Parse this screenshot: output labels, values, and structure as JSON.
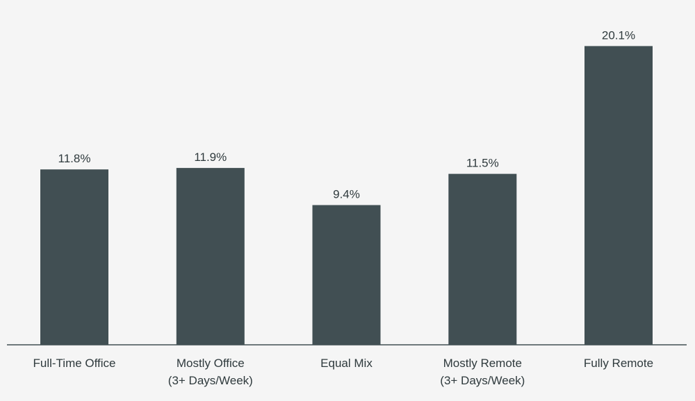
{
  "chart_data": {
    "type": "bar",
    "categories": [
      [
        "Full-Time Office"
      ],
      [
        "Mostly Office",
        "(3+ Days/Week)"
      ],
      [
        "Equal Mix"
      ],
      [
        "Mostly Remote",
        "(3+ Days/Week)"
      ],
      [
        "Fully Remote"
      ]
    ],
    "values": [
      11.8,
      11.9,
      9.4,
      11.5,
      20.1
    ],
    "value_labels": [
      "11.8%",
      "11.9%",
      "9.4%",
      "11.5%",
      "20.1%"
    ],
    "ylim": [
      0,
      21.8
    ],
    "grid": false,
    "legend": "none",
    "colors": {
      "bar": "#414f53",
      "background": "#f5f5f5",
      "text": "#2f3a3d"
    }
  }
}
